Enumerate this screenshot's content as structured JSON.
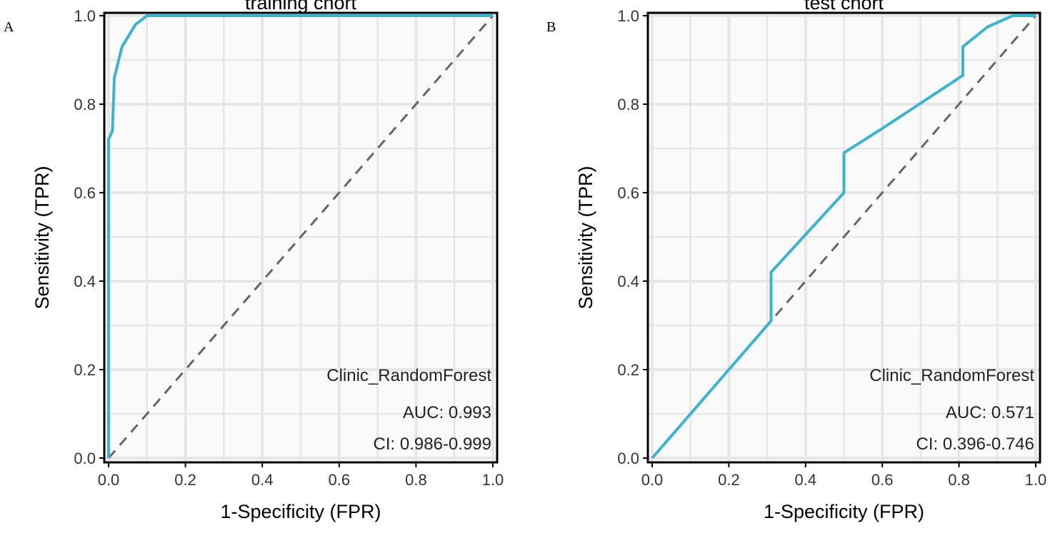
{
  "chart_data": [
    {
      "type": "line",
      "panel_label": "A",
      "title": "training chort",
      "xlabel": "1-Specificity (FPR)",
      "ylabel": "Sensitivity (TPR)",
      "xlim": [
        0,
        1
      ],
      "ylim": [
        0,
        1
      ],
      "grid": true,
      "xticks": [
        "0.0",
        "0.2",
        "0.4",
        "0.6",
        "0.8",
        "1.0"
      ],
      "yticks": [
        "0.0",
        "0.2",
        "0.4",
        "0.6",
        "0.8",
        "1.0"
      ],
      "series": [
        {
          "name": "Clinic_RandomForest",
          "color": "#3bb4d0",
          "x": [
            0,
            0,
            0.01,
            0.015,
            0.035,
            0.07,
            0.1,
            1
          ],
          "y": [
            0,
            0.72,
            0.74,
            0.86,
            0.93,
            0.98,
            1,
            1
          ]
        }
      ],
      "legend": {
        "name": "Clinic_RandomForest",
        "auc": "AUC: 0.993",
        "ci": "CI: 0.986-0.999",
        "position": "bottom-right"
      }
    },
    {
      "type": "line",
      "panel_label": "B",
      "title": "test chort",
      "xlabel": "1-Specificity (FPR)",
      "ylabel": "Sensitivity (TPR)",
      "xlim": [
        0,
        1
      ],
      "ylim": [
        0,
        1
      ],
      "grid": true,
      "xticks": [
        "0.0",
        "0.2",
        "0.4",
        "0.6",
        "0.8",
        "1.0"
      ],
      "yticks": [
        "0.0",
        "0.2",
        "0.4",
        "0.6",
        "0.8",
        "1.0"
      ],
      "series": [
        {
          "name": "Clinic_RandomForest",
          "color": "#3bb4d0",
          "x": [
            0,
            0.31,
            0.31,
            0.5,
            0.5,
            0.6,
            0.81,
            0.81,
            0.875,
            0.94,
            1
          ],
          "y": [
            0,
            0.31,
            0.42,
            0.6,
            0.69,
            0.745,
            0.865,
            0.93,
            0.975,
            1,
            1
          ]
        }
      ],
      "legend": {
        "name": "Clinic_RandomForest",
        "auc": "AUC: 0.571",
        "ci": "CI: 0.396-0.746",
        "position": "bottom-right"
      }
    }
  ]
}
